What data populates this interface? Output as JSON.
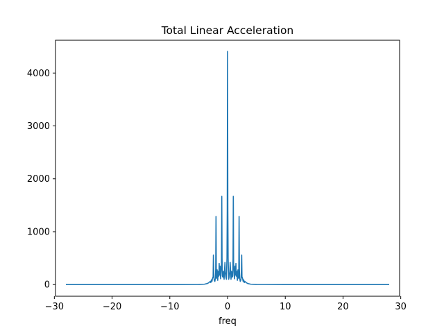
{
  "chart_data": {
    "type": "line",
    "title": "Total Linear Acceleration",
    "xlabel": "freq",
    "ylabel": "",
    "xlim": [
      -29.8,
      29.8
    ],
    "ylim": [
      -220,
      4620
    ],
    "xticks": [
      -30,
      -20,
      -10,
      0,
      10,
      20,
      30
    ],
    "yticks": [
      0,
      1000,
      2000,
      3000,
      4000
    ],
    "xtick_labels": [
      "−30",
      "−20",
      "−10",
      "0",
      "10",
      "20",
      "30"
    ],
    "ytick_labels": [
      "0",
      "1000",
      "2000",
      "3000",
      "4000"
    ],
    "grid": false,
    "legend": "none",
    "colors": {
      "series": "#1f77b4",
      "axes": "#000000",
      "background": "#ffffff"
    },
    "series": [
      {
        "x": [
          -28,
          -20,
          -10,
          -5,
          -4,
          -3.5,
          -3.2,
          -3.0,
          -2.9,
          -2.8,
          -2.7,
          -2.6,
          -2.5,
          -2.45,
          -2.4,
          -2.35,
          -2.3,
          -2.2,
          -2.1,
          -2.05,
          -2.0,
          -1.95,
          -1.9,
          -1.8,
          -1.7,
          -1.6,
          -1.5,
          -1.45,
          -1.4,
          -1.3,
          -1.2,
          -1.1,
          -1.05,
          -1.0,
          -0.95,
          -0.9,
          -0.8,
          -0.7,
          -0.6,
          -0.5,
          -0.45,
          -0.4,
          -0.35,
          -0.3,
          -0.2,
          -0.1,
          -0.05,
          0,
          0.05,
          0.1,
          0.2,
          0.3,
          0.35,
          0.4,
          0.45,
          0.5,
          0.6,
          0.7,
          0.8,
          0.9,
          0.95,
          1.0,
          1.05,
          1.1,
          1.2,
          1.3,
          1.4,
          1.45,
          1.5,
          1.6,
          1.7,
          1.8,
          1.9,
          1.95,
          2.0,
          2.05,
          2.1,
          2.2,
          2.3,
          2.35,
          2.4,
          2.45,
          2.5,
          2.6,
          2.7,
          2.8,
          2.9,
          3.0,
          3.2,
          3.5,
          4,
          5,
          10,
          20,
          28
        ],
        "y": [
          0,
          0,
          0,
          2,
          8,
          20,
          40,
          60,
          40,
          90,
          60,
          120,
          150,
          560,
          300,
          120,
          80,
          60,
          120,
          300,
          1290,
          300,
          120,
          280,
          80,
          250,
          160,
          400,
          180,
          350,
          110,
          300,
          400,
          1670,
          500,
          160,
          140,
          250,
          100,
          320,
          420,
          250,
          200,
          150,
          100,
          500,
          1400,
          4410,
          1400,
          500,
          100,
          150,
          200,
          250,
          420,
          320,
          100,
          250,
          140,
          160,
          500,
          1670,
          400,
          300,
          110,
          350,
          180,
          400,
          160,
          250,
          80,
          280,
          120,
          300,
          1290,
          300,
          120,
          60,
          80,
          120,
          300,
          560,
          150,
          120,
          60,
          90,
          40,
          60,
          40,
          20,
          8,
          2,
          0,
          0,
          0
        ]
      }
    ]
  }
}
